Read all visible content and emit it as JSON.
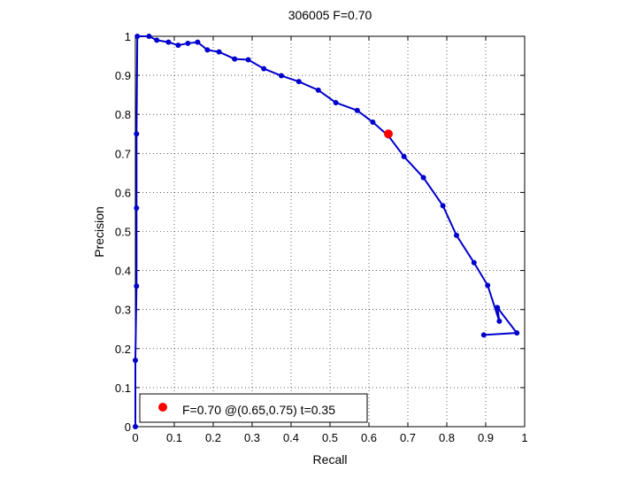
{
  "chart_data": {
    "type": "line",
    "title": "306005 F=0.70",
    "xlabel": "Recall",
    "ylabel": "Precision",
    "xlim": [
      0,
      1
    ],
    "ylim": [
      0,
      1
    ],
    "xticks": [
      "0",
      "0.1",
      "0.2",
      "0.3",
      "0.4",
      "0.5",
      "0.6",
      "0.7",
      "0.8",
      "0.9",
      "1"
    ],
    "yticks": [
      "0",
      "0.1",
      "0.2",
      "0.3",
      "0.4",
      "0.5",
      "0.6",
      "0.7",
      "0.8",
      "0.9",
      "1"
    ],
    "grid": true,
    "legend_position": "bottom-left",
    "series": [
      {
        "color": "#0000cc",
        "x": [
          0.0,
          0.0,
          0.003,
          0.003,
          0.003,
          0.005,
          0.035,
          0.055,
          0.085,
          0.11,
          0.135,
          0.16,
          0.185,
          0.215,
          0.255,
          0.29,
          0.33,
          0.375,
          0.42,
          0.47,
          0.515,
          0.57,
          0.61,
          0.65,
          0.69,
          0.74,
          0.79,
          0.825,
          0.87,
          0.905,
          0.935,
          0.93,
          0.98,
          0.895
        ],
        "y": [
          0.0,
          0.17,
          0.36,
          0.56,
          0.75,
          1.0,
          1.0,
          0.99,
          0.985,
          0.977,
          0.982,
          0.985,
          0.965,
          0.96,
          0.942,
          0.94,
          0.917,
          0.899,
          0.884,
          0.862,
          0.83,
          0.81,
          0.78,
          0.745,
          0.692,
          0.638,
          0.566,
          0.49,
          0.42,
          0.362,
          0.27,
          0.305,
          0.24,
          0.235
        ]
      }
    ],
    "best_point": {
      "x": 0.65,
      "y": 0.75,
      "color": "#ff0000"
    },
    "legend": {
      "label": "F=0.70 @(0.65,0.75) t=0.35"
    }
  }
}
